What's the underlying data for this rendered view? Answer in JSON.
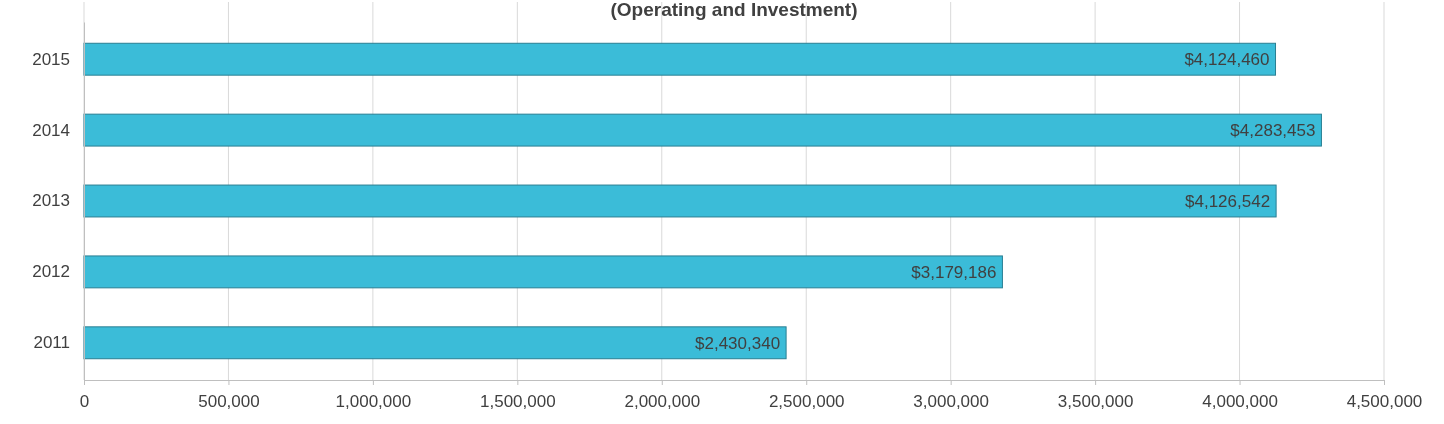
{
  "chart_data": {
    "type": "bar",
    "orientation": "horizontal",
    "title": "(Operating and Investment)",
    "categories": [
      "2015",
      "2014",
      "2013",
      "2012",
      "2011"
    ],
    "values": [
      4124460,
      4283453,
      4126542,
      3179186,
      2430340
    ],
    "value_labels": [
      "$4,124,460",
      "$4,283,453",
      "$4,126,542",
      "$3,179,186",
      "$2,430,340"
    ],
    "color": "#3bbcd8",
    "xlim": [
      0,
      4500000
    ],
    "xticks": [
      0,
      {
        "value": 500000,
        "label": "500,000"
      },
      {
        "value": 1000000,
        "label": "1,000,000"
      },
      {
        "value": 1500000,
        "label": "1,500,000"
      },
      {
        "value": 2000000,
        "label": "2,000,000"
      },
      {
        "value": 2500000,
        "label": "2,500,000"
      },
      {
        "value": 3000000,
        "label": "3,000,000"
      },
      {
        "value": 3500000,
        "label": "3,500,000"
      },
      {
        "value": 4000000,
        "label": "4,000,000"
      },
      {
        "value": 4500000,
        "label": "4,500,000"
      }
    ],
    "grid": "x"
  }
}
